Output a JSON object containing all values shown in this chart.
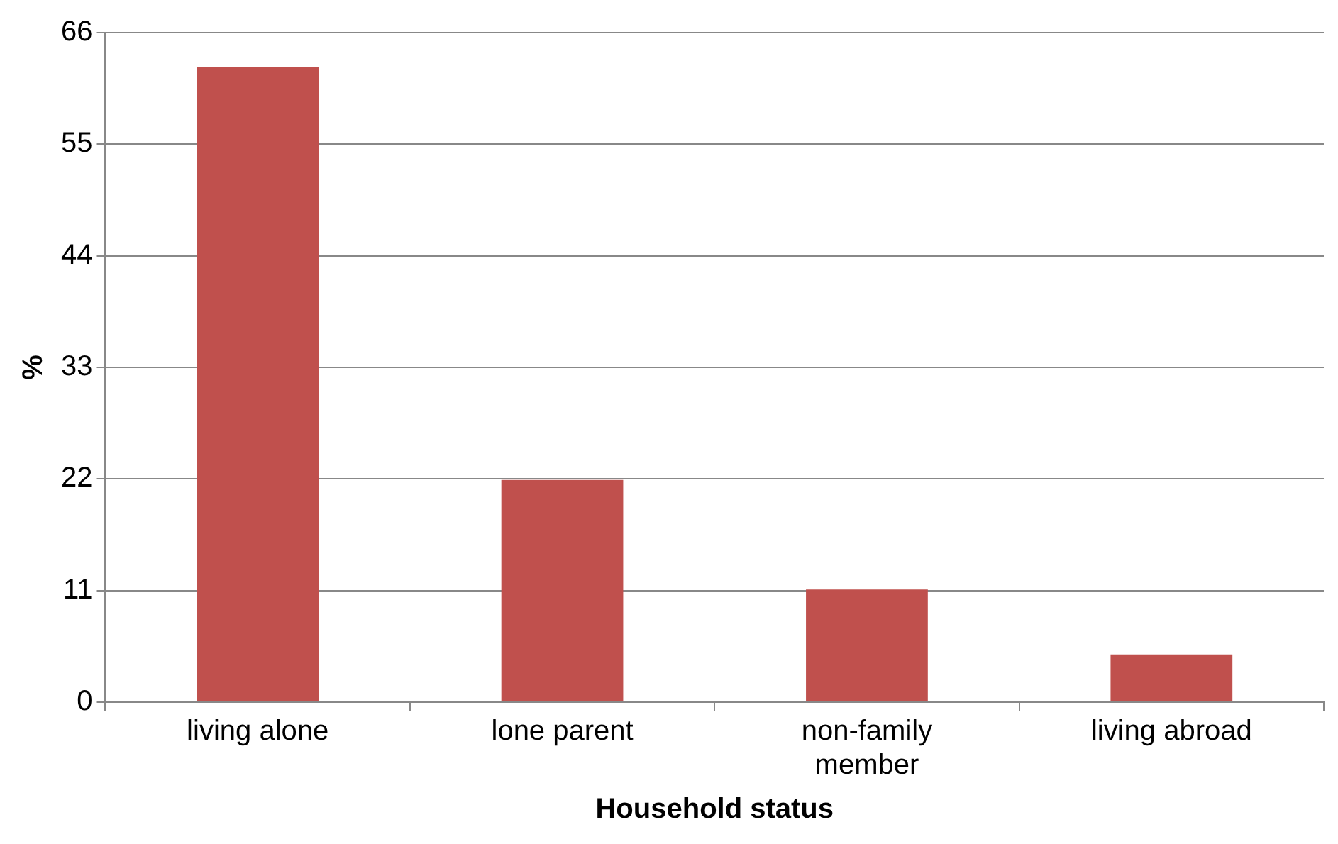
{
  "chart_data": {
    "type": "bar",
    "xlabel": "Household status",
    "ylabel": "%",
    "categories": [
      "living alone",
      "lone parent",
      "non-family member",
      "living abroad"
    ],
    "values": [
      62.6,
      21.9,
      11.1,
      4.7
    ],
    "color": "#c0504d",
    "ylim": [
      0,
      66
    ],
    "yticks": [
      0,
      11,
      22,
      33,
      44,
      55,
      66
    ],
    "grid": "y"
  }
}
